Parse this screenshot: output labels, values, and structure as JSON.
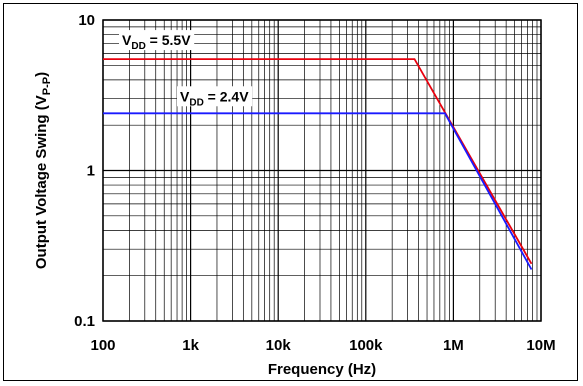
{
  "chart_data": {
    "type": "line",
    "xlabel": "Frequency (Hz)",
    "ylabel": {
      "main": "Output Voltage Swing (V",
      "sub": "P-P",
      "close": ")"
    },
    "x_scale": "log",
    "y_scale": "log",
    "xlim": [
      100,
      10000000
    ],
    "ylim": [
      0.1,
      10
    ],
    "x_ticks": [
      {
        "value": 100,
        "label": "100"
      },
      {
        "value": 1000,
        "label": "1k"
      },
      {
        "value": 10000,
        "label": "10k"
      },
      {
        "value": 100000,
        "label": "100k"
      },
      {
        "value": 1000000,
        "label": "1M"
      },
      {
        "value": 10000000,
        "label": "10M"
      }
    ],
    "y_ticks": [
      {
        "value": 0.1,
        "label": "0.1"
      },
      {
        "value": 1,
        "label": "1"
      },
      {
        "value": 10,
        "label": "10"
      }
    ],
    "grid": true,
    "series": [
      {
        "name": "VDD = 5.5V",
        "label_parts": {
          "main": "V",
          "sub": "DD",
          "rest": " = 5.5V"
        },
        "color": "#e8000d",
        "points": [
          [
            100,
            5.5
          ],
          [
            360000,
            5.5
          ],
          [
            7800000,
            0.24
          ]
        ]
      },
      {
        "name": "VDD = 2.4V",
        "label_parts": {
          "main": "V",
          "sub": "DD",
          "rest": " = 2.4V"
        },
        "color": "#1a1aff",
        "points": [
          [
            100,
            2.4
          ],
          [
            800000,
            2.4
          ],
          [
            7800000,
            0.22
          ]
        ]
      }
    ]
  }
}
